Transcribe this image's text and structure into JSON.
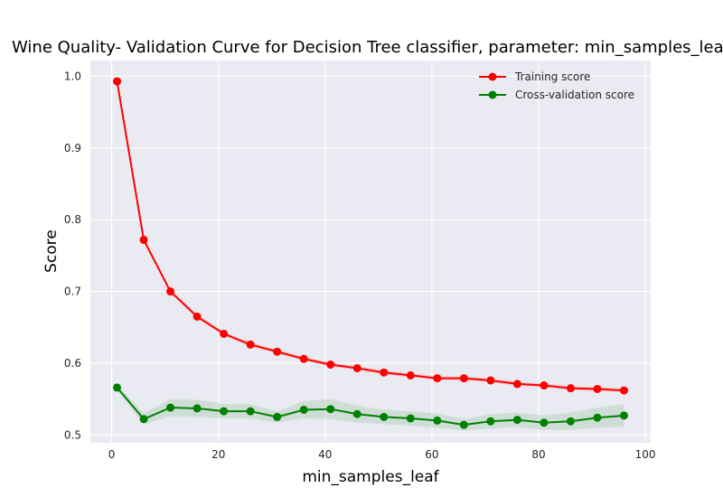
{
  "chart_data": {
    "type": "line",
    "title": "Wine Quality- Validation Curve for Decision Tree classifier, parameter: min_samples_leaf",
    "xlabel": "min_samples_leaf",
    "ylabel": "Score",
    "xlim": [
      -4,
      101
    ],
    "ylim": [
      0.489,
      1.022
    ],
    "xticks": [
      0,
      20,
      40,
      60,
      80,
      100
    ],
    "yticks": [
      0.5,
      0.6,
      0.7,
      0.8,
      0.9,
      1.0
    ],
    "grid": true,
    "legend_position": "top-right",
    "x": [
      1,
      6,
      11,
      16,
      21,
      26,
      31,
      36,
      41,
      46,
      51,
      56,
      61,
      66,
      71,
      76,
      81,
      86,
      91,
      96
    ],
    "series": [
      {
        "name": "Training score",
        "color": "#ff0000",
        "band_color": "#f4b6b6",
        "values": [
          0.993,
          0.772,
          0.7,
          0.665,
          0.641,
          0.626,
          0.616,
          0.606,
          0.598,
          0.593,
          0.587,
          0.583,
          0.579,
          0.579,
          0.576,
          0.571,
          0.569,
          0.565,
          0.564,
          0.562
        ],
        "spread": [
          0.001,
          0.003,
          0.003,
          0.003,
          0.003,
          0.003,
          0.003,
          0.003,
          0.003,
          0.003,
          0.003,
          0.003,
          0.003,
          0.003,
          0.003,
          0.003,
          0.003,
          0.003,
          0.003,
          0.003
        ]
      },
      {
        "name": "Cross-validation score",
        "color": "#008000",
        "band_color": "#b7d3bf",
        "values": [
          0.566,
          0.522,
          0.538,
          0.537,
          0.533,
          0.533,
          0.525,
          0.535,
          0.536,
          0.529,
          0.525,
          0.523,
          0.52,
          0.514,
          0.519,
          0.521,
          0.517,
          0.519,
          0.524,
          0.527
        ],
        "spread": [
          0.004,
          0.008,
          0.012,
          0.012,
          0.01,
          0.01,
          0.008,
          0.012,
          0.014,
          0.012,
          0.01,
          0.01,
          0.01,
          0.008,
          0.01,
          0.01,
          0.01,
          0.012,
          0.014,
          0.016
        ]
      }
    ]
  }
}
